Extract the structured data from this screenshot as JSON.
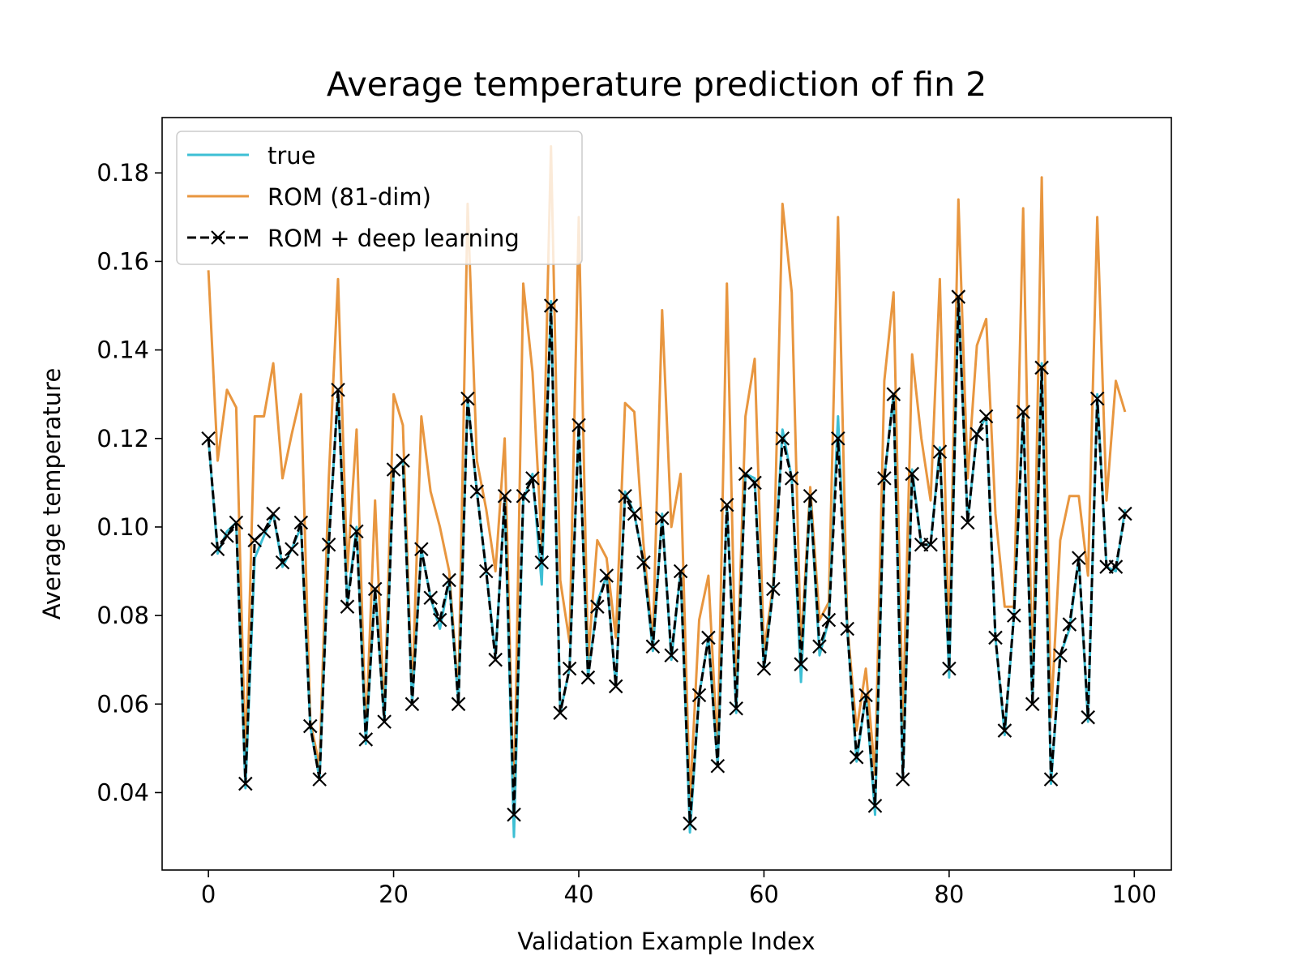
{
  "chart_data": {
    "type": "line",
    "title": "Average temperature prediction of fin 2",
    "xlabel": "Validation Example Index",
    "ylabel": "Average temperature",
    "xlim": [
      -5,
      104
    ],
    "ylim": [
      0.0225,
      0.1925
    ],
    "xticks": [
      0,
      20,
      40,
      60,
      80,
      100
    ],
    "xtick_labels": [
      "0",
      "20",
      "40",
      "60",
      "80",
      "100"
    ],
    "yticks": [
      0.04,
      0.06,
      0.08,
      0.1,
      0.12,
      0.14,
      0.16,
      0.18
    ],
    "ytick_labels": [
      "0.04",
      "0.06",
      "0.08",
      "0.10",
      "0.12",
      "0.14",
      "0.16",
      "0.18"
    ],
    "grid": false,
    "legend_position": "top-left",
    "x": [
      0,
      1,
      2,
      3,
      4,
      5,
      6,
      7,
      8,
      9,
      10,
      11,
      12,
      13,
      14,
      15,
      16,
      17,
      18,
      19,
      20,
      21,
      22,
      23,
      24,
      25,
      26,
      27,
      28,
      29,
      30,
      31,
      32,
      33,
      34,
      35,
      36,
      37,
      38,
      39,
      40,
      41,
      42,
      43,
      44,
      45,
      46,
      47,
      48,
      49,
      50,
      51,
      52,
      53,
      54,
      55,
      56,
      57,
      58,
      59,
      60,
      61,
      62,
      63,
      64,
      65,
      66,
      67,
      68,
      69,
      70,
      71,
      72,
      73,
      74,
      75,
      76,
      77,
      78,
      79,
      80,
      81,
      82,
      83,
      84,
      85,
      86,
      87,
      88,
      89,
      90,
      91,
      92,
      93,
      94,
      95,
      96,
      97,
      98,
      99
    ],
    "series": [
      {
        "name": "true",
        "color": "#3dbfd4",
        "style": "solid",
        "marker": "none",
        "values": [
          0.12,
          0.094,
          0.099,
          0.101,
          0.041,
          0.093,
          0.098,
          0.103,
          0.091,
          0.095,
          0.1,
          0.055,
          0.043,
          0.097,
          0.13,
          0.083,
          0.1,
          0.051,
          0.086,
          0.056,
          0.113,
          0.115,
          0.06,
          0.095,
          0.084,
          0.077,
          0.088,
          0.06,
          0.129,
          0.108,
          0.09,
          0.071,
          0.106,
          0.03,
          0.106,
          0.112,
          0.087,
          0.151,
          0.058,
          0.068,
          0.123,
          0.066,
          0.083,
          0.089,
          0.064,
          0.108,
          0.103,
          0.092,
          0.072,
          0.103,
          0.07,
          0.09,
          0.031,
          0.062,
          0.075,
          0.046,
          0.105,
          0.058,
          0.112,
          0.111,
          0.068,
          0.086,
          0.122,
          0.111,
          0.065,
          0.107,
          0.071,
          0.079,
          0.125,
          0.077,
          0.047,
          0.062,
          0.035,
          0.111,
          0.13,
          0.043,
          0.113,
          0.096,
          0.096,
          0.118,
          0.066,
          0.152,
          0.101,
          0.121,
          0.125,
          0.075,
          0.053,
          0.08,
          0.126,
          0.06,
          0.137,
          0.042,
          0.071,
          0.077,
          0.093,
          0.056,
          0.13,
          0.091,
          0.09,
          0.104
        ]
      },
      {
        "name": "ROM (81-dim)",
        "color": "#e8963f",
        "style": "solid",
        "marker": "none",
        "values": [
          0.158,
          0.115,
          0.131,
          0.127,
          0.047,
          0.125,
          0.125,
          0.137,
          0.111,
          0.121,
          0.13,
          0.056,
          0.046,
          0.111,
          0.156,
          0.09,
          0.122,
          0.053,
          0.106,
          0.057,
          0.13,
          0.123,
          0.062,
          0.125,
          0.108,
          0.1,
          0.09,
          0.062,
          0.173,
          0.115,
          0.104,
          0.09,
          0.12,
          0.036,
          0.155,
          0.135,
          0.096,
          0.186,
          0.088,
          0.074,
          0.17,
          0.07,
          0.097,
          0.093,
          0.075,
          0.128,
          0.126,
          0.096,
          0.074,
          0.149,
          0.1,
          0.112,
          0.038,
          0.079,
          0.089,
          0.049,
          0.155,
          0.06,
          0.125,
          0.138,
          0.072,
          0.087,
          0.173,
          0.153,
          0.072,
          0.109,
          0.079,
          0.083,
          0.17,
          0.078,
          0.054,
          0.068,
          0.044,
          0.133,
          0.153,
          0.055,
          0.139,
          0.12,
          0.106,
          0.156,
          0.073,
          0.174,
          0.111,
          0.141,
          0.147,
          0.103,
          0.082,
          0.082,
          0.172,
          0.064,
          0.179,
          0.057,
          0.097,
          0.107,
          0.107,
          0.089,
          0.17,
          0.106,
          0.133,
          0.126
        ]
      },
      {
        "name": "ROM + deep learning",
        "color": "#000000",
        "style": "dashed",
        "marker": "x",
        "values": [
          0.12,
          0.095,
          0.098,
          0.101,
          0.042,
          0.097,
          0.099,
          0.103,
          0.092,
          0.095,
          0.101,
          0.055,
          0.043,
          0.096,
          0.131,
          0.082,
          0.099,
          0.052,
          0.086,
          0.056,
          0.113,
          0.115,
          0.06,
          0.095,
          0.084,
          0.079,
          0.088,
          0.06,
          0.129,
          0.108,
          0.09,
          0.07,
          0.107,
          0.035,
          0.107,
          0.111,
          0.092,
          0.15,
          0.058,
          0.068,
          0.123,
          0.066,
          0.082,
          0.089,
          0.064,
          0.107,
          0.103,
          0.092,
          0.073,
          0.102,
          0.071,
          0.09,
          0.033,
          0.062,
          0.075,
          0.046,
          0.105,
          0.059,
          0.112,
          0.11,
          0.068,
          0.086,
          0.12,
          0.111,
          0.069,
          0.107,
          0.073,
          0.079,
          0.12,
          0.077,
          0.048,
          0.062,
          0.037,
          0.111,
          0.13,
          0.043,
          0.112,
          0.096,
          0.096,
          0.117,
          0.068,
          0.152,
          0.101,
          0.121,
          0.125,
          0.075,
          0.054,
          0.08,
          0.126,
          0.06,
          0.136,
          0.043,
          0.071,
          0.078,
          0.093,
          0.057,
          0.129,
          0.091,
          0.091,
          0.103
        ]
      }
    ]
  }
}
